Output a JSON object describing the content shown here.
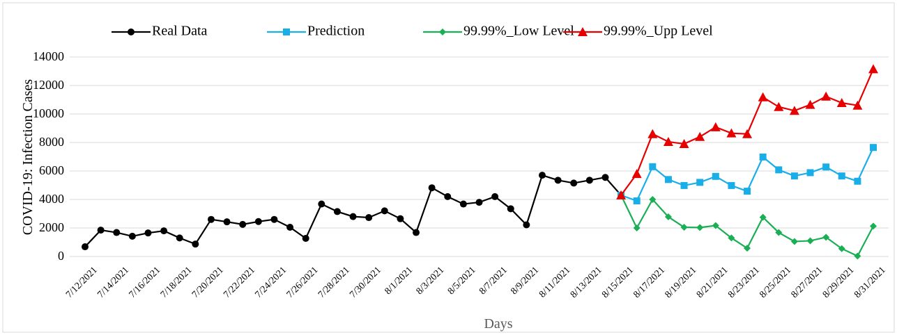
{
  "chart_data": {
    "type": "line",
    "x_label": "Days",
    "y_label": "COVID-19: Infection Cases",
    "categories": [
      "7/12/2021",
      null,
      "7/14/2021",
      null,
      "7/16/2021",
      null,
      "7/18/2021",
      null,
      "7/20/2021",
      null,
      "7/22/2021",
      null,
      "7/24/2021",
      null,
      "7/26/2021",
      null,
      "7/28/2021",
      null,
      "7/30/2021",
      null,
      "8/1/2021",
      null,
      "8/3/2021",
      null,
      "8/5/2021",
      null,
      "8/7/2021",
      null,
      "8/9/2021",
      null,
      "8/11/2021",
      null,
      "8/13/2021",
      null,
      "8/15/2021",
      null,
      "8/17/2021",
      null,
      "8/19/2021",
      null,
      "8/21/2021",
      null,
      "8/23/2021",
      null,
      "8/25/2021",
      null,
      "8/27/2021",
      null,
      "8/29/2021",
      null,
      "8/31/2021"
    ],
    "series": [
      {
        "name": "Real Data",
        "color": "#000000",
        "marker": "circle",
        "values": [
          680,
          1850,
          1680,
          1420,
          1650,
          1800,
          1300,
          870,
          2600,
          2430,
          2250,
          2450,
          2600,
          2050,
          1270,
          3680,
          3150,
          2800,
          2730,
          3200,
          2650,
          1680,
          4820,
          4200,
          3680,
          3800,
          4200,
          3350,
          2220,
          5700,
          5350,
          5150,
          5350,
          5550,
          4300,
          null,
          null,
          null,
          null,
          null,
          null,
          null,
          null,
          null,
          null,
          null,
          null,
          null,
          null,
          null,
          null
        ]
      },
      {
        "name": "Prediction",
        "color": "#1aaee8",
        "marker": "square",
        "values": [
          null,
          null,
          null,
          null,
          null,
          null,
          null,
          null,
          null,
          null,
          null,
          null,
          null,
          null,
          null,
          null,
          null,
          null,
          null,
          null,
          null,
          null,
          null,
          null,
          null,
          null,
          null,
          null,
          null,
          null,
          null,
          null,
          null,
          null,
          4300,
          3900,
          6300,
          5400,
          4980,
          5200,
          5620,
          4980,
          4580,
          6980,
          6080,
          5650,
          5880,
          6280,
          5650,
          5280,
          7650
        ]
      },
      {
        "name": "99.99%_Low Level",
        "color": "#1aaf54",
        "marker": "diamond",
        "values": [
          null,
          null,
          null,
          null,
          null,
          null,
          null,
          null,
          null,
          null,
          null,
          null,
          null,
          null,
          null,
          null,
          null,
          null,
          null,
          null,
          null,
          null,
          null,
          null,
          null,
          null,
          null,
          null,
          null,
          null,
          null,
          null,
          null,
          null,
          4300,
          2000,
          4000,
          2780,
          2050,
          2030,
          2170,
          1300,
          580,
          2750,
          1680,
          1050,
          1100,
          1350,
          550,
          30,
          2130
        ]
      },
      {
        "name": "99.99%_Upp Level",
        "color": "#e60000",
        "marker": "triangle",
        "values": [
          null,
          null,
          null,
          null,
          null,
          null,
          null,
          null,
          null,
          null,
          null,
          null,
          null,
          null,
          null,
          null,
          null,
          null,
          null,
          null,
          null,
          null,
          null,
          null,
          null,
          null,
          null,
          null,
          null,
          null,
          null,
          null,
          null,
          null,
          4300,
          5800,
          8600,
          8050,
          7900,
          8400,
          9080,
          8650,
          8600,
          11180,
          10500,
          10230,
          10650,
          11230,
          10780,
          10600,
          13150
        ]
      }
    ],
    "ylim": [
      0,
      14000
    ],
    "yticks": [
      0,
      2000,
      4000,
      6000,
      8000,
      10000,
      12000,
      14000
    ],
    "grid": true,
    "legend": "top"
  }
}
